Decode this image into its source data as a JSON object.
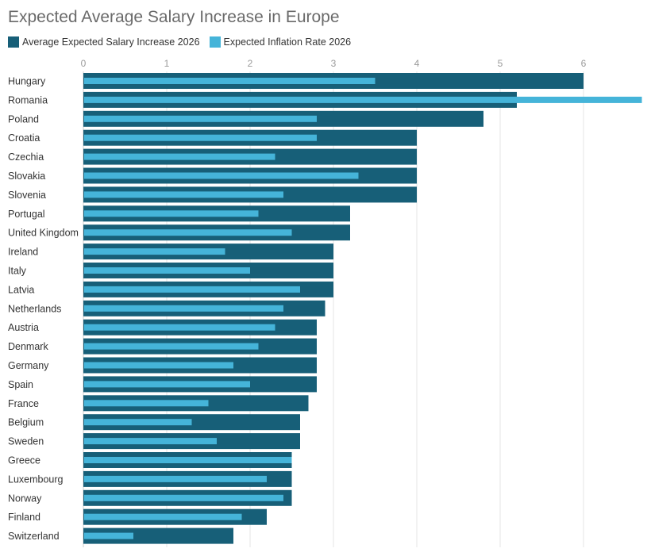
{
  "chart_data": {
    "type": "bar",
    "orientation": "horizontal",
    "title": "Expected Average Salary Increase in Europe",
    "categories": [
      "Hungary",
      "Romania",
      "Poland",
      "Croatia",
      "Czechia",
      "Slovakia",
      "Slovenia",
      "Portugal",
      "United Kingdom",
      "Ireland",
      "Italy",
      "Latvia",
      "Netherlands",
      "Austria",
      "Denmark",
      "Germany",
      "Spain",
      "France",
      "Belgium",
      "Sweden",
      "Greece",
      "Luxembourg",
      "Norway",
      "Finland",
      "Switzerland"
    ],
    "series": [
      {
        "name": "Average Expected Salary Increase 2026",
        "color": "#175f78",
        "values": [
          6.0,
          5.2,
          4.8,
          4.0,
          4.0,
          4.0,
          4.0,
          3.2,
          3.2,
          3.0,
          3.0,
          3.0,
          2.9,
          2.8,
          2.8,
          2.8,
          2.8,
          2.7,
          2.6,
          2.6,
          2.5,
          2.5,
          2.5,
          2.2,
          1.8
        ]
      },
      {
        "name": "Expected Inflation Rate 2026",
        "color": "#45b4d9",
        "values": [
          3.5,
          6.7,
          2.8,
          2.8,
          2.3,
          3.3,
          2.4,
          2.1,
          2.5,
          1.7,
          2.0,
          2.6,
          2.4,
          2.3,
          2.1,
          1.8,
          2.0,
          1.5,
          1.3,
          1.6,
          2.5,
          2.2,
          2.4,
          1.9,
          0.6
        ]
      }
    ],
    "xticks": [
      "0",
      "1",
      "2",
      "3",
      "4",
      "5",
      "6"
    ],
    "xlim": [
      0,
      6.7
    ],
    "xlabel": "",
    "ylabel": "",
    "grid": true,
    "legend_position": "top-left"
  }
}
